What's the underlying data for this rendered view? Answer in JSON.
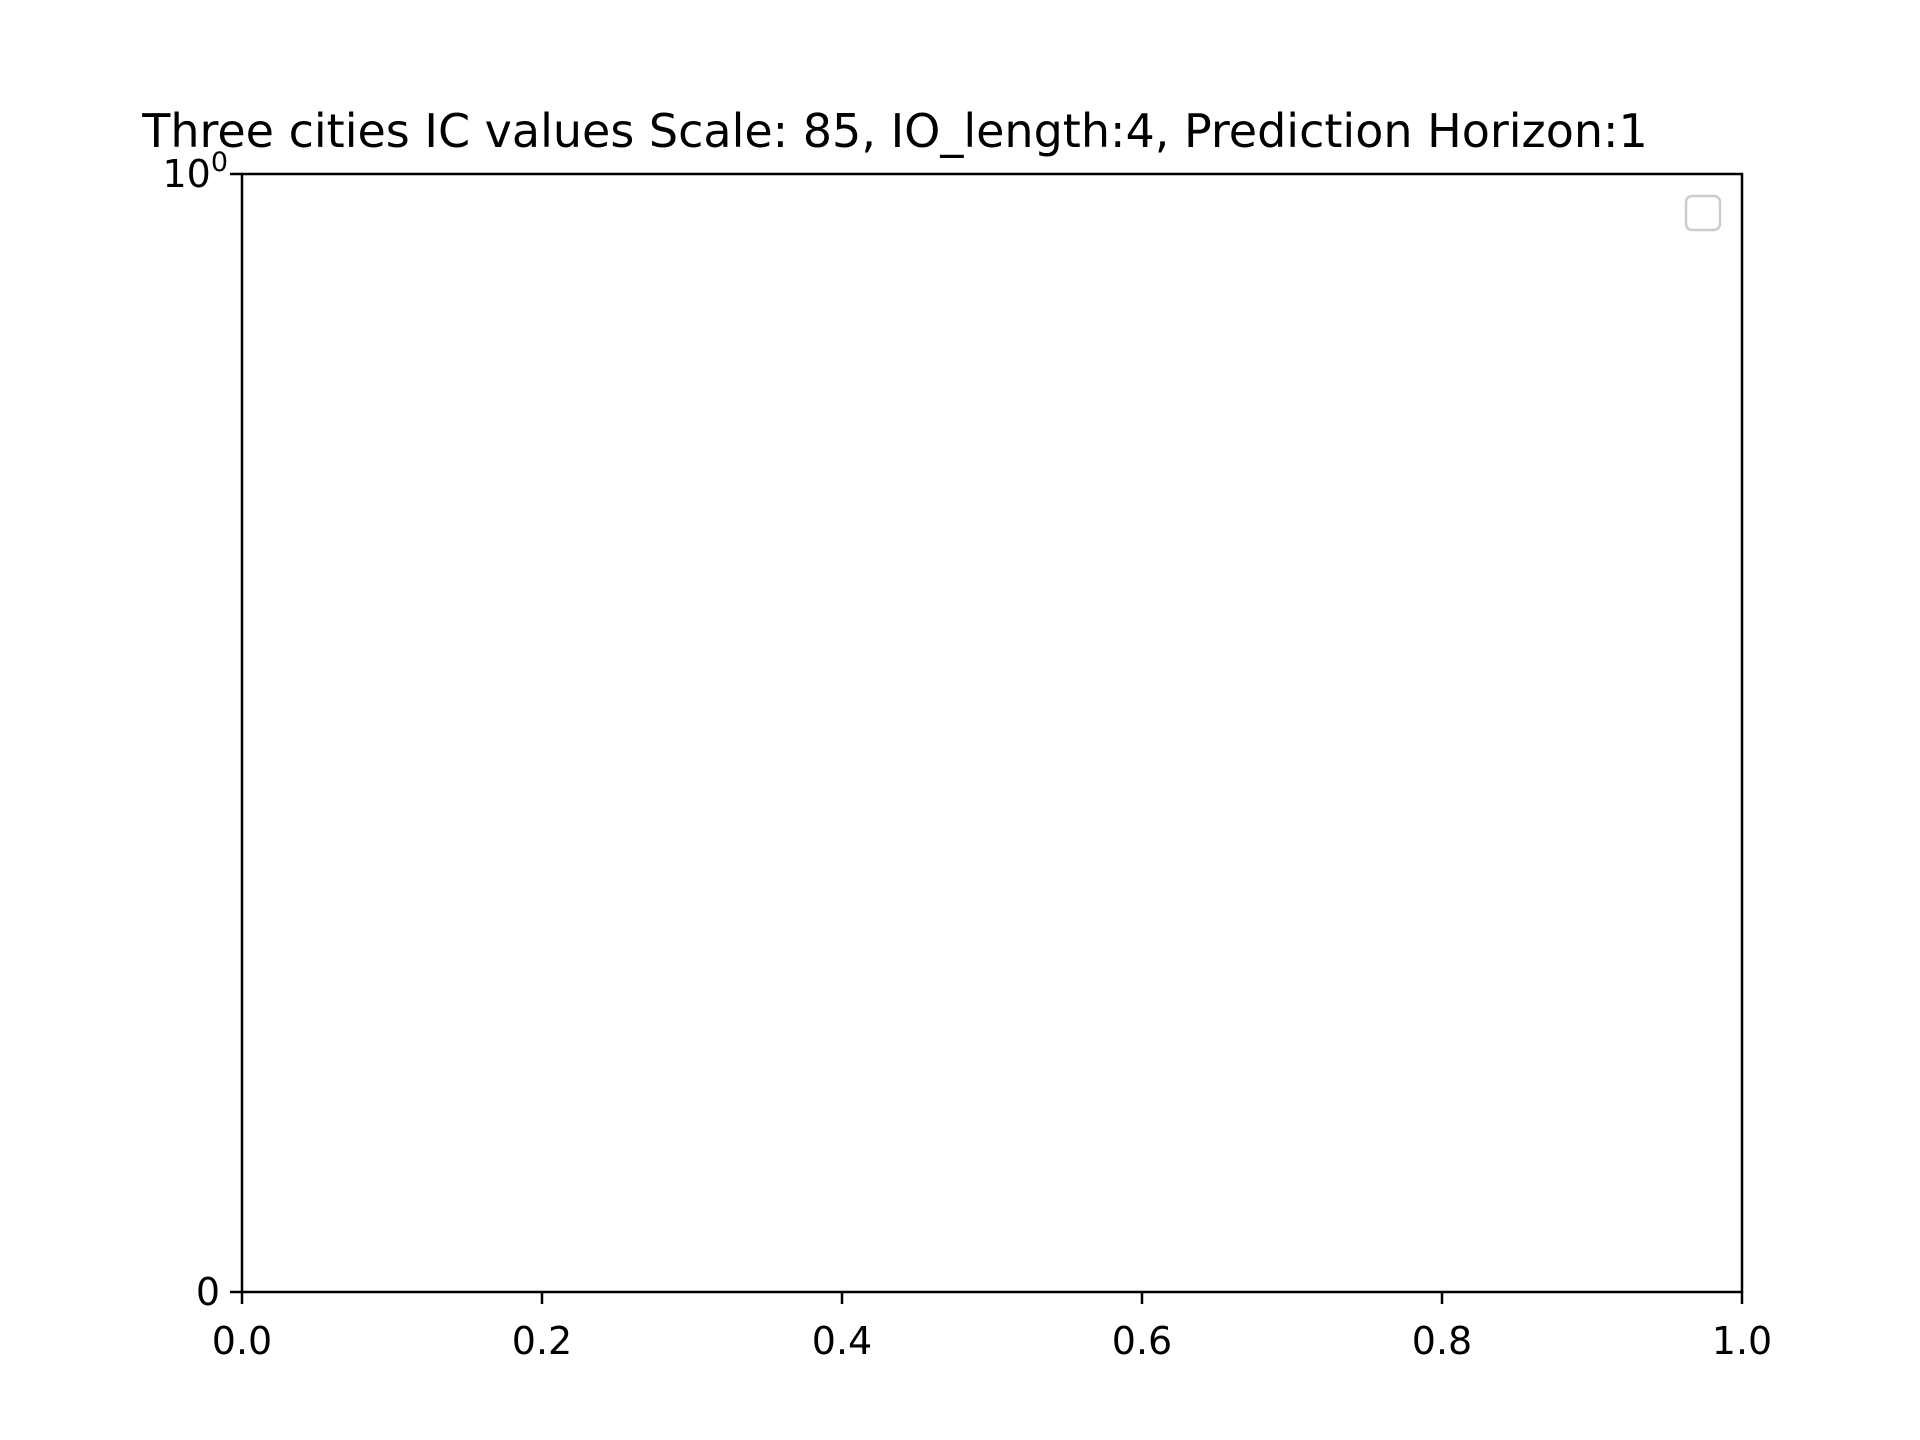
{
  "chart_data": {
    "type": "line",
    "title": "Three cities IC values Scale: 85, IO_length:4, Prediction Horizon:1",
    "xlabel": "",
    "ylabel": "",
    "xlim": [
      0.0,
      1.0
    ],
    "x_ticks": [
      "0.0",
      "0.2",
      "0.4",
      "0.6",
      "0.8",
      "1.0"
    ],
    "y_ticks": [
      {
        "value": 0,
        "base": "0",
        "exponent": ""
      },
      {
        "value": 1,
        "base": "10",
        "exponent": "0"
      }
    ],
    "y_scale": "symlog",
    "series": [],
    "grid": false,
    "legend": {
      "placement": "top-right",
      "entries": []
    },
    "colors": {
      "axes": "#000000",
      "background": "#ffffff",
      "legend_border": "#cccccc"
    }
  }
}
